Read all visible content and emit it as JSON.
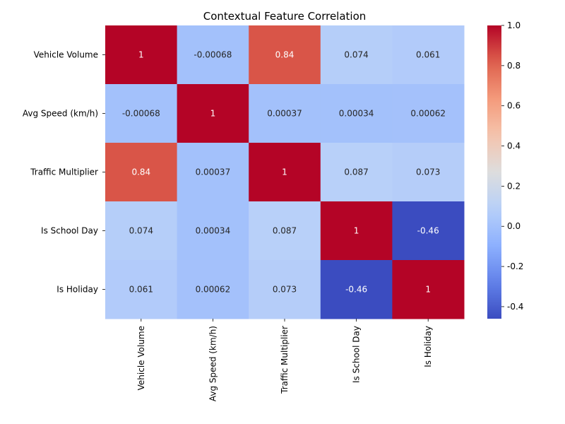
{
  "chart_data": {
    "type": "heatmap",
    "title": "Contextual Feature Correlation",
    "rows": [
      "Vehicle Volume",
      "Avg Speed (km/h)",
      "Traffic Multiplier",
      "Is School Day",
      "Is Holiday"
    ],
    "columns": [
      "Vehicle Volume",
      "Avg Speed (km/h)",
      "Traffic Multiplier",
      "Is School Day",
      "Is Holiday"
    ],
    "values": [
      [
        1,
        -0.00068,
        0.84,
        0.074,
        0.061
      ],
      [
        -0.00068,
        1,
        0.00037,
        0.00034,
        0.00062
      ],
      [
        0.84,
        0.00037,
        1,
        0.087,
        0.073
      ],
      [
        0.074,
        0.00034,
        0.087,
        1,
        -0.46
      ],
      [
        0.061,
        0.00062,
        0.073,
        -0.46,
        1
      ]
    ],
    "labels": [
      [
        "1",
        "-0.00068",
        "0.84",
        "0.074",
        "0.061"
      ],
      [
        "-0.00068",
        "1",
        "0.00037",
        "0.00034",
        "0.00062"
      ],
      [
        "0.84",
        "0.00037",
        "1",
        "0.087",
        "0.073"
      ],
      [
        "0.074",
        "0.00034",
        "0.087",
        "1",
        "-0.46"
      ],
      [
        "0.061",
        "0.00062",
        "0.073",
        "-0.46",
        "1"
      ]
    ],
    "colormap": "coolwarm",
    "color_range": [
      -0.46,
      1.0
    ],
    "colorbar_ticks": [
      "-0.4",
      "-0.2",
      "0.0",
      "0.2",
      "0.4",
      "0.6",
      "0.8",
      "1.0"
    ],
    "colorbar_tick_values": [
      -0.4,
      -0.2,
      0.0,
      0.2,
      0.4,
      0.6,
      0.8,
      1.0
    ],
    "low_color": "#3b4cc0",
    "high_color": "#b40426",
    "legend": "colorbar-right"
  }
}
